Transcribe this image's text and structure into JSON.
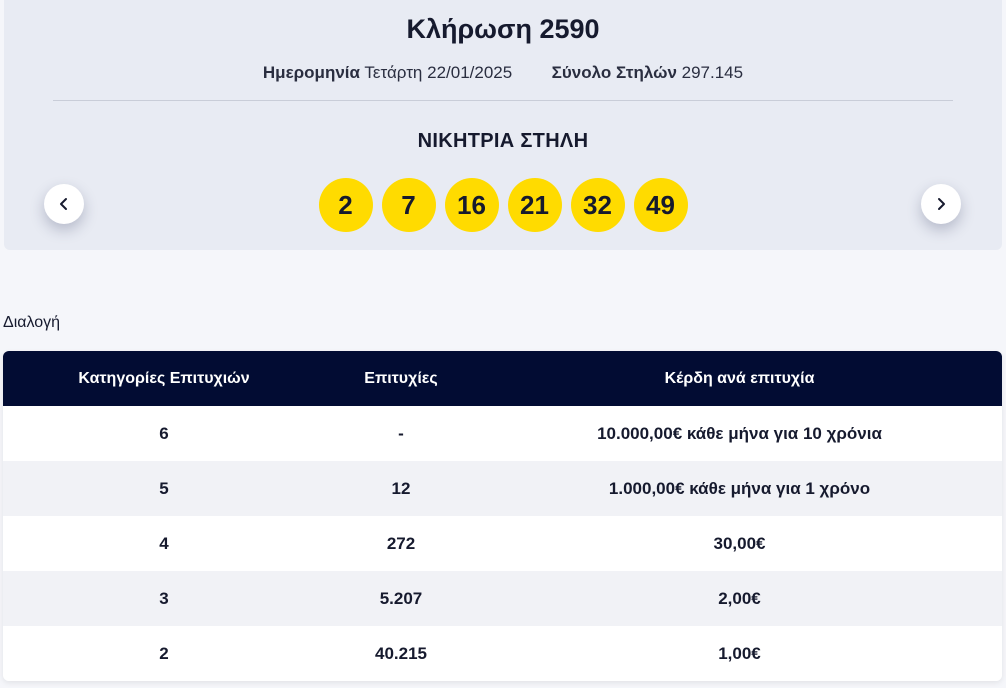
{
  "draw": {
    "title": "Κλήρωση 2590",
    "date_label": "Ημερομηνία",
    "date_value": "Τετάρτη 22/01/2025",
    "columns_label": "Σύνολο Στηλών",
    "columns_value": "297.145",
    "winning_title": "ΝΙΚΗΤΡΙΑ ΣΤΗΛΗ",
    "numbers": [
      "2",
      "7",
      "16",
      "21",
      "32",
      "49"
    ],
    "ball_color": "#ffdb00"
  },
  "nav": {
    "prev_icon": "chevron-left-icon",
    "next_icon": "chevron-right-icon"
  },
  "draw_type_label": "Διαλογή",
  "table": {
    "header_color": "#020c33",
    "headers": [
      "Κατηγορίες Επιτυχιών",
      "Επιτυχίες",
      "Κέρδη ανά επιτυχία"
    ],
    "rows": [
      [
        "6",
        "-",
        "10.000,00€ κάθε μήνα για 10 χρόνια"
      ],
      [
        "5",
        "12",
        "1.000,00€ κάθε μήνα για 1 χρόνο"
      ],
      [
        "4",
        "272",
        "30,00€"
      ],
      [
        "3",
        "5.207",
        "2,00€"
      ],
      [
        "2",
        "40.215",
        "1,00€"
      ]
    ]
  }
}
